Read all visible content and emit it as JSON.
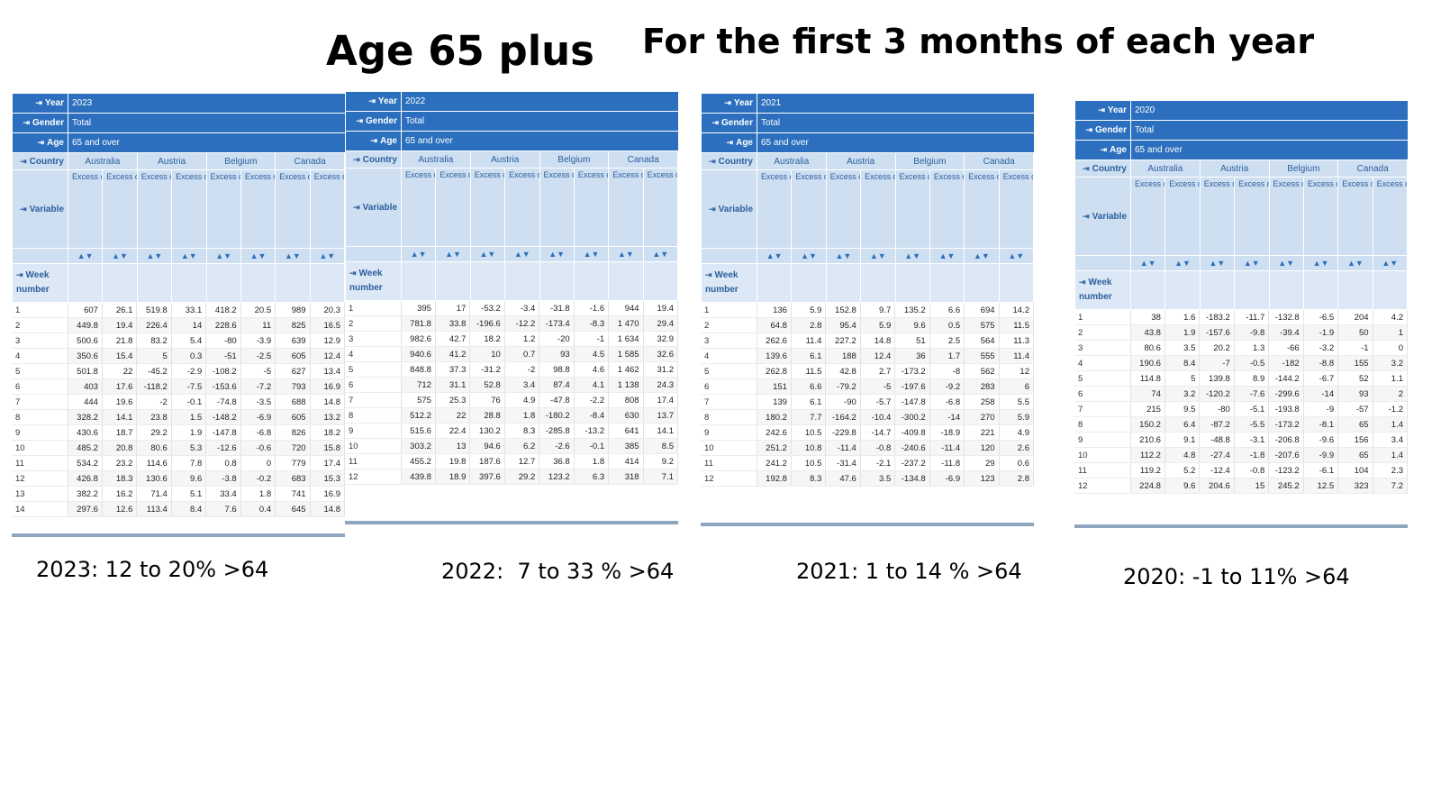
{
  "heading": {
    "left": "Age 65 plus",
    "right": "For the first 3 months of each year"
  },
  "labels": {
    "year": "Year",
    "gender": "Gender",
    "age": "Age",
    "country": "Country",
    "variable": "Variable",
    "week": "Week number",
    "pin_icon": "⇥",
    "sort_icon": "▲▼"
  },
  "countries": [
    "Australia",
    "Austria",
    "Belgium",
    "Canada"
  ],
  "variables": [
    "Excess deaths (number)",
    "Excess deaths (% change from average)"
  ],
  "panels": [
    {
      "year": "2023",
      "gender": "Total",
      "age": "65 and over",
      "caption": "2023: 12 to 20% >64",
      "rows": [
        [
          "1",
          "607",
          "26.1",
          "519.8",
          "33.1",
          "418.2",
          "20.5",
          "989",
          "20.3"
        ],
        [
          "2",
          "449.8",
          "19.4",
          "226.4",
          "14",
          "228.6",
          "11",
          "825",
          "16.5"
        ],
        [
          "3",
          "500.6",
          "21.8",
          "83.2",
          "5.4",
          "-80",
          "-3.9",
          "639",
          "12.9"
        ],
        [
          "4",
          "350.6",
          "15.4",
          "5",
          "0.3",
          "-51",
          "-2.5",
          "605",
          "12.4"
        ],
        [
          "5",
          "501.8",
          "22",
          "-45.2",
          "-2.9",
          "-108.2",
          "-5",
          "627",
          "13.4"
        ],
        [
          "6",
          "403",
          "17.6",
          "-118.2",
          "-7.5",
          "-153.6",
          "-7.2",
          "793",
          "16.9"
        ],
        [
          "7",
          "444",
          "19.6",
          "-2",
          "-0.1",
          "-74.8",
          "-3.5",
          "688",
          "14.8"
        ],
        [
          "8",
          "328.2",
          "14.1",
          "23.8",
          "1.5",
          "-148.2",
          "-6.9",
          "605",
          "13.2"
        ],
        [
          "9",
          "430.6",
          "18.7",
          "29.2",
          "1.9",
          "-147.8",
          "-6.8",
          "826",
          "18.2"
        ],
        [
          "10",
          "485.2",
          "20.8",
          "80.6",
          "5.3",
          "-12.6",
          "-0.6",
          "720",
          "15.8"
        ],
        [
          "11",
          "534.2",
          "23.2",
          "114.6",
          "7.8",
          "0.8",
          "0",
          "779",
          "17.4"
        ],
        [
          "12",
          "426.8",
          "18.3",
          "130.6",
          "9.6",
          "-3.8",
          "-0.2",
          "683",
          "15.3"
        ],
        [
          "13",
          "382.2",
          "16.2",
          "71.4",
          "5.1",
          "33.4",
          "1.8",
          "741",
          "16.9"
        ],
        [
          "14",
          "297.6",
          "12.6",
          "113.4",
          "8.4",
          "7.6",
          "0.4",
          "645",
          "14.8"
        ]
      ]
    },
    {
      "year": "2022",
      "gender": "Total",
      "age": "65 and over",
      "caption": "2022:  7 to 33 % >64",
      "rows": [
        [
          "1",
          "395",
          "17",
          "-53.2",
          "-3.4",
          "-31.8",
          "-1.6",
          "944",
          "19.4"
        ],
        [
          "2",
          "781.8",
          "33.8",
          "-196.6",
          "-12.2",
          "-173.4",
          "-8.3",
          "1 470",
          "29.4"
        ],
        [
          "3",
          "982.6",
          "42.7",
          "18.2",
          "1.2",
          "-20",
          "-1",
          "1 634",
          "32.9"
        ],
        [
          "4",
          "940.6",
          "41.2",
          "10",
          "0.7",
          "93",
          "4.5",
          "1 585",
          "32.6"
        ],
        [
          "5",
          "848.8",
          "37.3",
          "-31.2",
          "-2",
          "98.8",
          "4.6",
          "1 462",
          "31.2"
        ],
        [
          "6",
          "712",
          "31.1",
          "52.8",
          "3.4",
          "87.4",
          "4.1",
          "1 138",
          "24.3"
        ],
        [
          "7",
          "575",
          "25.3",
          "76",
          "4.9",
          "-47.8",
          "-2.2",
          "808",
          "17.4"
        ],
        [
          "8",
          "512.2",
          "22",
          "28.8",
          "1.8",
          "-180.2",
          "-8.4",
          "630",
          "13.7"
        ],
        [
          "9",
          "515.6",
          "22.4",
          "130.2",
          "8.3",
          "-285.8",
          "-13.2",
          "641",
          "14.1"
        ],
        [
          "10",
          "303.2",
          "13",
          "94.6",
          "6.2",
          "-2.6",
          "-0.1",
          "385",
          "8.5"
        ],
        [
          "11",
          "455.2",
          "19.8",
          "187.6",
          "12.7",
          "36.8",
          "1.8",
          "414",
          "9.2"
        ],
        [
          "12",
          "439.8",
          "18.9",
          "397.6",
          "29.2",
          "123.2",
          "6.3",
          "318",
          "7.1"
        ]
      ]
    },
    {
      "year": "2021",
      "gender": "Total",
      "age": "65 and over",
      "caption": "2021: 1 to 14 % >64",
      "rows": [
        [
          "1",
          "136",
          "5.9",
          "152.8",
          "9.7",
          "135.2",
          "6.6",
          "694",
          "14.2"
        ],
        [
          "2",
          "64.8",
          "2.8",
          "95.4",
          "5.9",
          "9.6",
          "0.5",
          "575",
          "11.5"
        ],
        [
          "3",
          "262.6",
          "11.4",
          "227.2",
          "14.8",
          "51",
          "2.5",
          "564",
          "11.3"
        ],
        [
          "4",
          "139.6",
          "6.1",
          "188",
          "12.4",
          "36",
          "1.7",
          "555",
          "11.4"
        ],
        [
          "5",
          "262.8",
          "11.5",
          "42.8",
          "2.7",
          "-173.2",
          "-8",
          "562",
          "12"
        ],
        [
          "6",
          "151",
          "6.6",
          "-79.2",
          "-5",
          "-197.6",
          "-9.2",
          "283",
          "6"
        ],
        [
          "7",
          "139",
          "6.1",
          "-90",
          "-5.7",
          "-147.8",
          "-6.8",
          "258",
          "5.5"
        ],
        [
          "8",
          "180.2",
          "7.7",
          "-164.2",
          "-10.4",
          "-300.2",
          "-14",
          "270",
          "5.9"
        ],
        [
          "9",
          "242.6",
          "10.5",
          "-229.8",
          "-14.7",
          "-409.8",
          "-18.9",
          "221",
          "4.9"
        ],
        [
          "10",
          "251.2",
          "10.8",
          "-11.4",
          "-0.8",
          "-240.6",
          "-11.4",
          "120",
          "2.6"
        ],
        [
          "11",
          "241.2",
          "10.5",
          "-31.4",
          "-2.1",
          "-237.2",
          "-11.8",
          "29",
          "0.6"
        ],
        [
          "12",
          "192.8",
          "8.3",
          "47.6",
          "3.5",
          "-134.8",
          "-6.9",
          "123",
          "2.8"
        ]
      ]
    },
    {
      "year": "2020",
      "gender": "Total",
      "age": "65 and over",
      "caption": "2020: -1 to 11% >64",
      "rows": [
        [
          "1",
          "38",
          "1.6",
          "-183.2",
          "-11.7",
          "-132.8",
          "-6.5",
          "204",
          "4.2"
        ],
        [
          "2",
          "43.8",
          "1.9",
          "-157.6",
          "-9.8",
          "-39.4",
          "-1.9",
          "50",
          "1"
        ],
        [
          "3",
          "80.6",
          "3.5",
          "20.2",
          "1.3",
          "-66",
          "-3.2",
          "-1",
          "0"
        ],
        [
          "4",
          "190.6",
          "8.4",
          "-7",
          "-0.5",
          "-182",
          "-8.8",
          "155",
          "3.2"
        ],
        [
          "5",
          "114.8",
          "5",
          "139.8",
          "8.9",
          "-144.2",
          "-6.7",
          "52",
          "1.1"
        ],
        [
          "6",
          "74",
          "3.2",
          "-120.2",
          "-7.6",
          "-299.6",
          "-14",
          "93",
          "2"
        ],
        [
          "7",
          "215",
          "9.5",
          "-80",
          "-5.1",
          "-193.8",
          "-9",
          "-57",
          "-1.2"
        ],
        [
          "8",
          "150.2",
          "6.4",
          "-87.2",
          "-5.5",
          "-173.2",
          "-8.1",
          "65",
          "1.4"
        ],
        [
          "9",
          "210.6",
          "9.1",
          "-48.8",
          "-3.1",
          "-206.8",
          "-9.6",
          "156",
          "3.4"
        ],
        [
          "10",
          "112.2",
          "4.8",
          "-27.4",
          "-1.8",
          "-207.6",
          "-9.9",
          "65",
          "1.4"
        ],
        [
          "11",
          "119.2",
          "5.2",
          "-12.4",
          "-0.8",
          "-123.2",
          "-6.1",
          "104",
          "2.3"
        ],
        [
          "12",
          "224.8",
          "9.6",
          "204.6",
          "15",
          "245.2",
          "12.5",
          "323",
          "7.2"
        ]
      ]
    }
  ]
}
